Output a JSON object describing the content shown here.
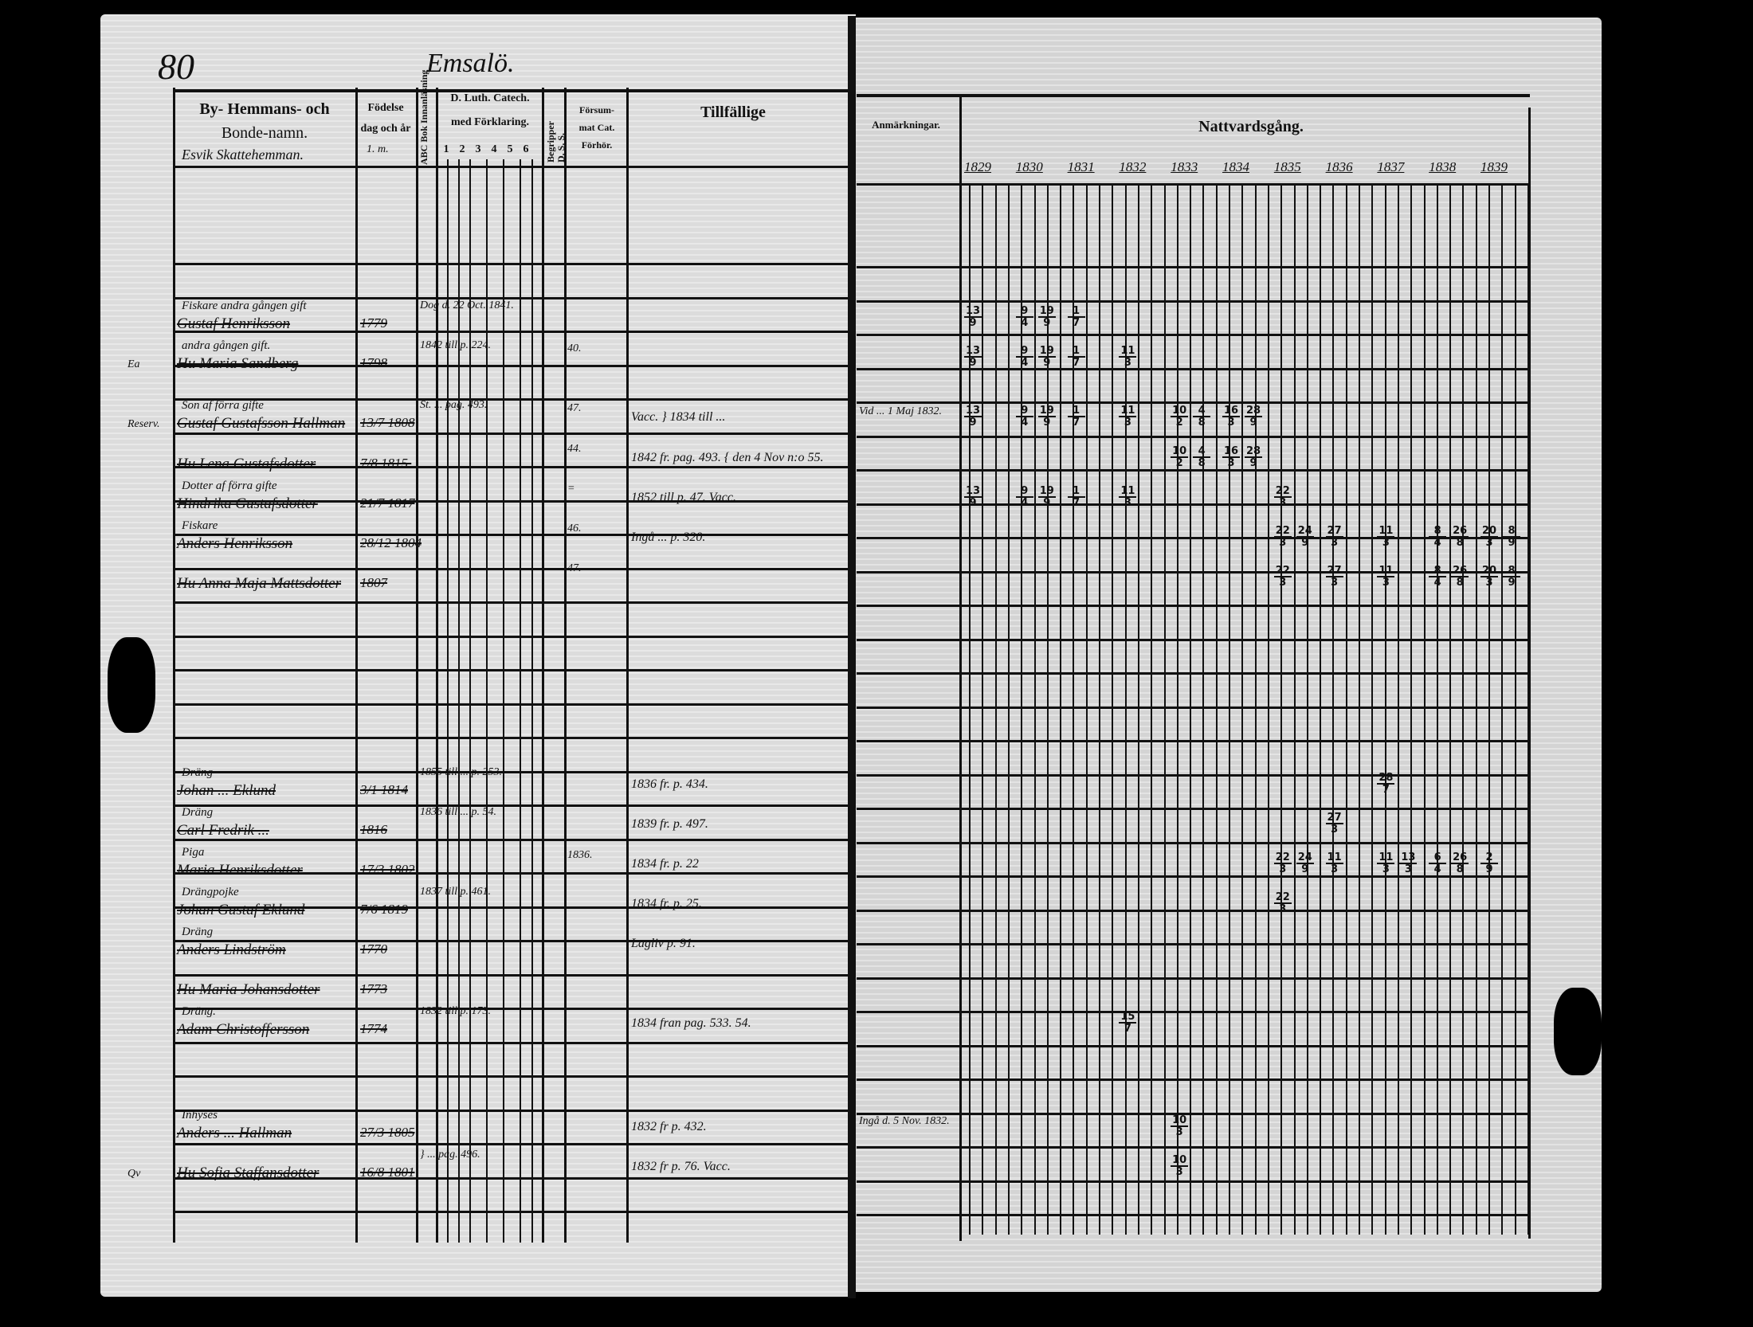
{
  "page_number": "80",
  "parish_heading": "Emsalö.",
  "left_header": {
    "name_col_line1": "By- Hemmans- och",
    "name_col_line2": "Bonde-namn.",
    "farm_label": "Esvik Skattehemman.",
    "birth_line1": "Födelse",
    "birth_line2": "dag och år",
    "birth_line3": "1. m.",
    "abc_col": "ABC Bok Innanläsning",
    "catech_line1": "D. Luth. Catech.",
    "catech_line2": "med Förklaring.",
    "catech_numbers": [
      "1",
      "2",
      "3",
      "4",
      "5",
      "6"
    ],
    "begripper_col": "Begripper",
    "ds_col": "D. S. S.",
    "missed_line1": "Försum-",
    "missed_line2": "mat Cat.",
    "missed_line3": "Förhör.",
    "occasional": "Tillfällige"
  },
  "right_header": {
    "remarks": "Anmärkningar.",
    "communion": "Nattvardsgång.",
    "years": [
      "1829",
      "1830",
      "1831",
      "1832",
      "1833",
      "1834",
      "1835",
      "1836",
      "1837",
      "1838",
      "1839"
    ]
  },
  "entries": [
    {
      "margin": "",
      "title": "Fiskare   andra gången gift",
      "name": "Gustaf Henriksson",
      "birth": "1779",
      "catech": "Dog d. 22 Oct. 1841.",
      "no": "",
      "moved": "",
      "remarks": "",
      "marks": [
        {
          "year": "1829",
          "d": "13",
          "m": "9"
        },
        {
          "year": "1830",
          "d": "9",
          "m": "4"
        },
        {
          "year": "1830",
          "d": "19",
          "m": "9"
        },
        {
          "year": "1831",
          "d": "1",
          "m": "7"
        }
      ]
    },
    {
      "margin": "Ea",
      "title": "andra gången gift.",
      "name": "Hu Maria Sandberg",
      "birth": "1798",
      "catech": "1842 till p. 224.",
      "no": "40.",
      "moved": "",
      "remarks": "",
      "marks": [
        {
          "year": "1829",
          "d": "13",
          "m": "9"
        },
        {
          "year": "1830",
          "d": "9",
          "m": "4"
        },
        {
          "year": "1830",
          "d": "19",
          "m": "9"
        },
        {
          "year": "1831",
          "d": "1",
          "m": "7"
        },
        {
          "year": "1832",
          "d": "11",
          "m": "3"
        }
      ]
    },
    {
      "margin": "Reserv.",
      "title": "Son af förra gifte",
      "name": "Gustaf Gustafsson Hallman",
      "birth": "13/7 1808",
      "catech": "St. ... pag. 493.",
      "no": "47.",
      "moved": "Vacc.   } 1834 till ...",
      "remarks": "Vid ... 1 Maj 1832.",
      "marks": [
        {
          "year": "1829",
          "d": "13",
          "m": "9"
        },
        {
          "year": "1830",
          "d": "9",
          "m": "4"
        },
        {
          "year": "1830",
          "d": "19",
          "m": "9"
        },
        {
          "year": "1831",
          "d": "1",
          "m": "7"
        },
        {
          "year": "1832",
          "d": "11",
          "m": "3"
        },
        {
          "year": "1833",
          "d": "10",
          "m": "2"
        },
        {
          "year": "1833",
          "d": "4",
          "m": "8"
        },
        {
          "year": "1834",
          "d": "16",
          "m": "3"
        },
        {
          "year": "1834",
          "d": "28",
          "m": "9"
        }
      ]
    },
    {
      "margin": "",
      "title": "",
      "name": "Hu Lena Gustafsdotter",
      "birth": "7/8 1815.",
      "catech": "",
      "no": "44.",
      "moved": "1842 fr. pag. 493. { den 4 Nov n:o 55.",
      "remarks": "",
      "marks": [
        {
          "year": "1833",
          "d": "10",
          "m": "2"
        },
        {
          "year": "1833",
          "d": "4",
          "m": "8"
        },
        {
          "year": "1834",
          "d": "16",
          "m": "3"
        },
        {
          "year": "1834",
          "d": "28",
          "m": "9"
        }
      ]
    },
    {
      "margin": "",
      "title": "Dotter af förra gifte",
      "name": "Hindrika Gustafsdotter",
      "birth": "21/7 1817",
      "catech": "",
      "no": "=",
      "moved": "1852 till p. 47. Vacc.",
      "remarks": "",
      "marks": [
        {
          "year": "1829",
          "d": "13",
          "m": "9"
        },
        {
          "year": "1830",
          "d": "9",
          "m": "4"
        },
        {
          "year": "1830",
          "d": "19",
          "m": "9"
        },
        {
          "year": "1831",
          "d": "1",
          "m": "7"
        },
        {
          "year": "1832",
          "d": "11",
          "m": "3"
        },
        {
          "year": "1835",
          "d": "22",
          "m": "3"
        }
      ]
    },
    {
      "margin": "",
      "title": "Fiskare",
      "name": "Anders Henriksson",
      "birth": "28/12 1804",
      "catech": "",
      "no": "46.",
      "moved": "Ingå ... p. 320.",
      "remarks": "",
      "marks": [
        {
          "year": "1835",
          "d": "22",
          "m": "3"
        },
        {
          "year": "1835",
          "d": "24",
          "m": "9"
        },
        {
          "year": "1836",
          "d": "27",
          "m": "3"
        },
        {
          "year": "1837",
          "d": "11",
          "m": "3"
        },
        {
          "year": "1838",
          "d": "8",
          "m": "4"
        },
        {
          "year": "1838",
          "d": "26",
          "m": "8"
        },
        {
          "year": "1839",
          "d": "20",
          "m": "3"
        },
        {
          "year": "1839",
          "d": "8",
          "m": "9"
        }
      ]
    },
    {
      "margin": "",
      "title": "",
      "name": "Hu Anna Maja Mattsdotter",
      "birth": "1807",
      "catech": "",
      "no": "47.",
      "moved": "",
      "remarks": "",
      "marks": [
        {
          "year": "1835",
          "d": "22",
          "m": "3"
        },
        {
          "year": "1836",
          "d": "27",
          "m": "3"
        },
        {
          "year": "1837",
          "d": "11",
          "m": "3"
        },
        {
          "year": "1838",
          "d": "8",
          "m": "4"
        },
        {
          "year": "1838",
          "d": "26",
          "m": "8"
        },
        {
          "year": "1839",
          "d": "20",
          "m": "3"
        },
        {
          "year": "1839",
          "d": "8",
          "m": "9"
        }
      ]
    },
    {
      "margin": "",
      "title": "Dräng",
      "name": "Johan ... Eklund",
      "birth": "3/1 1814",
      "catech": "1855 till ... p. 253.",
      "no": "",
      "moved": "1836 fr. p. 434.",
      "remarks": "",
      "marks": [
        {
          "year": "1837",
          "d": "28",
          "m": "7"
        }
      ]
    },
    {
      "margin": "",
      "title": "Dräng",
      "name": "Carl Fredrik ...",
      "birth": "1816",
      "catech": "1836 till ... p. 54.",
      "no": "",
      "moved": "1839 fr. p. 497.",
      "remarks": "",
      "marks": [
        {
          "year": "1836",
          "d": "27",
          "m": "3"
        }
      ]
    },
    {
      "margin": "",
      "title": "Piga",
      "name": "Maria Henriksdotter",
      "birth": "17/3 1802",
      "catech": "",
      "no": "1836.",
      "moved": "1834 fr. p. 22",
      "remarks": "",
      "marks": [
        {
          "year": "1835",
          "d": "22",
          "m": "3"
        },
        {
          "year": "1835",
          "d": "24",
          "m": "9"
        },
        {
          "year": "1836",
          "d": "11",
          "m": "3"
        },
        {
          "year": "1837",
          "d": "11",
          "m": "3"
        },
        {
          "year": "1837",
          "d": "13",
          "m": "3"
        },
        {
          "year": "1838",
          "d": "6",
          "m": "4"
        },
        {
          "year": "1838",
          "d": "26",
          "m": "8"
        },
        {
          "year": "1839",
          "d": "2",
          "m": "9"
        }
      ]
    },
    {
      "margin": "",
      "title": "Drängpojke",
      "name": "Johan Gustaf Eklund",
      "birth": "7/6 1819",
      "catech": "1837 till p. 461.",
      "no": "",
      "moved": "1834 fr. p. 25.",
      "remarks": "",
      "marks": [
        {
          "year": "1835",
          "d": "22",
          "m": "3"
        }
      ]
    },
    {
      "margin": "",
      "title": "Dräng",
      "name": "Anders Lindström",
      "birth": "1770",
      "catech": "",
      "no": "",
      "moved": "Lagliv p. 91.",
      "remarks": "",
      "marks": []
    },
    {
      "margin": "",
      "title": "",
      "name": "Hu Maria Johansdotter",
      "birth": "1773",
      "catech": "",
      "no": "",
      "moved": "",
      "remarks": "",
      "marks": []
    },
    {
      "margin": "",
      "title": "Dräng.",
      "name": "Adam Christoffersson",
      "birth": "1774",
      "catech": "1832 till p. 173.",
      "no": "",
      "moved": "1834 fran pag. 533. 54.",
      "remarks": "",
      "marks": [
        {
          "year": "1832",
          "d": "15",
          "m": "7"
        }
      ]
    },
    {
      "margin": "",
      "title": "Inhyses",
      "name": "Anders ... Hallman",
      "birth": "27/3 1805",
      "catech": "",
      "no": "",
      "moved": "1832 fr p. 432.",
      "remarks": "Ingå d. 5 Nov. 1832.",
      "marks": [
        {
          "year": "1833",
          "d": "10",
          "m": "3"
        }
      ]
    },
    {
      "margin": "Qv",
      "title": "",
      "name": "Hu Sofia Staffansdotter",
      "birth": "16/8 1801",
      "catech": "} ... pag. 496.",
      "no": "",
      "moved": "1832 fr p. 76. Vacc.",
      "remarks": "",
      "marks": [
        {
          "year": "1833",
          "d": "10",
          "m": "3"
        }
      ]
    }
  ]
}
